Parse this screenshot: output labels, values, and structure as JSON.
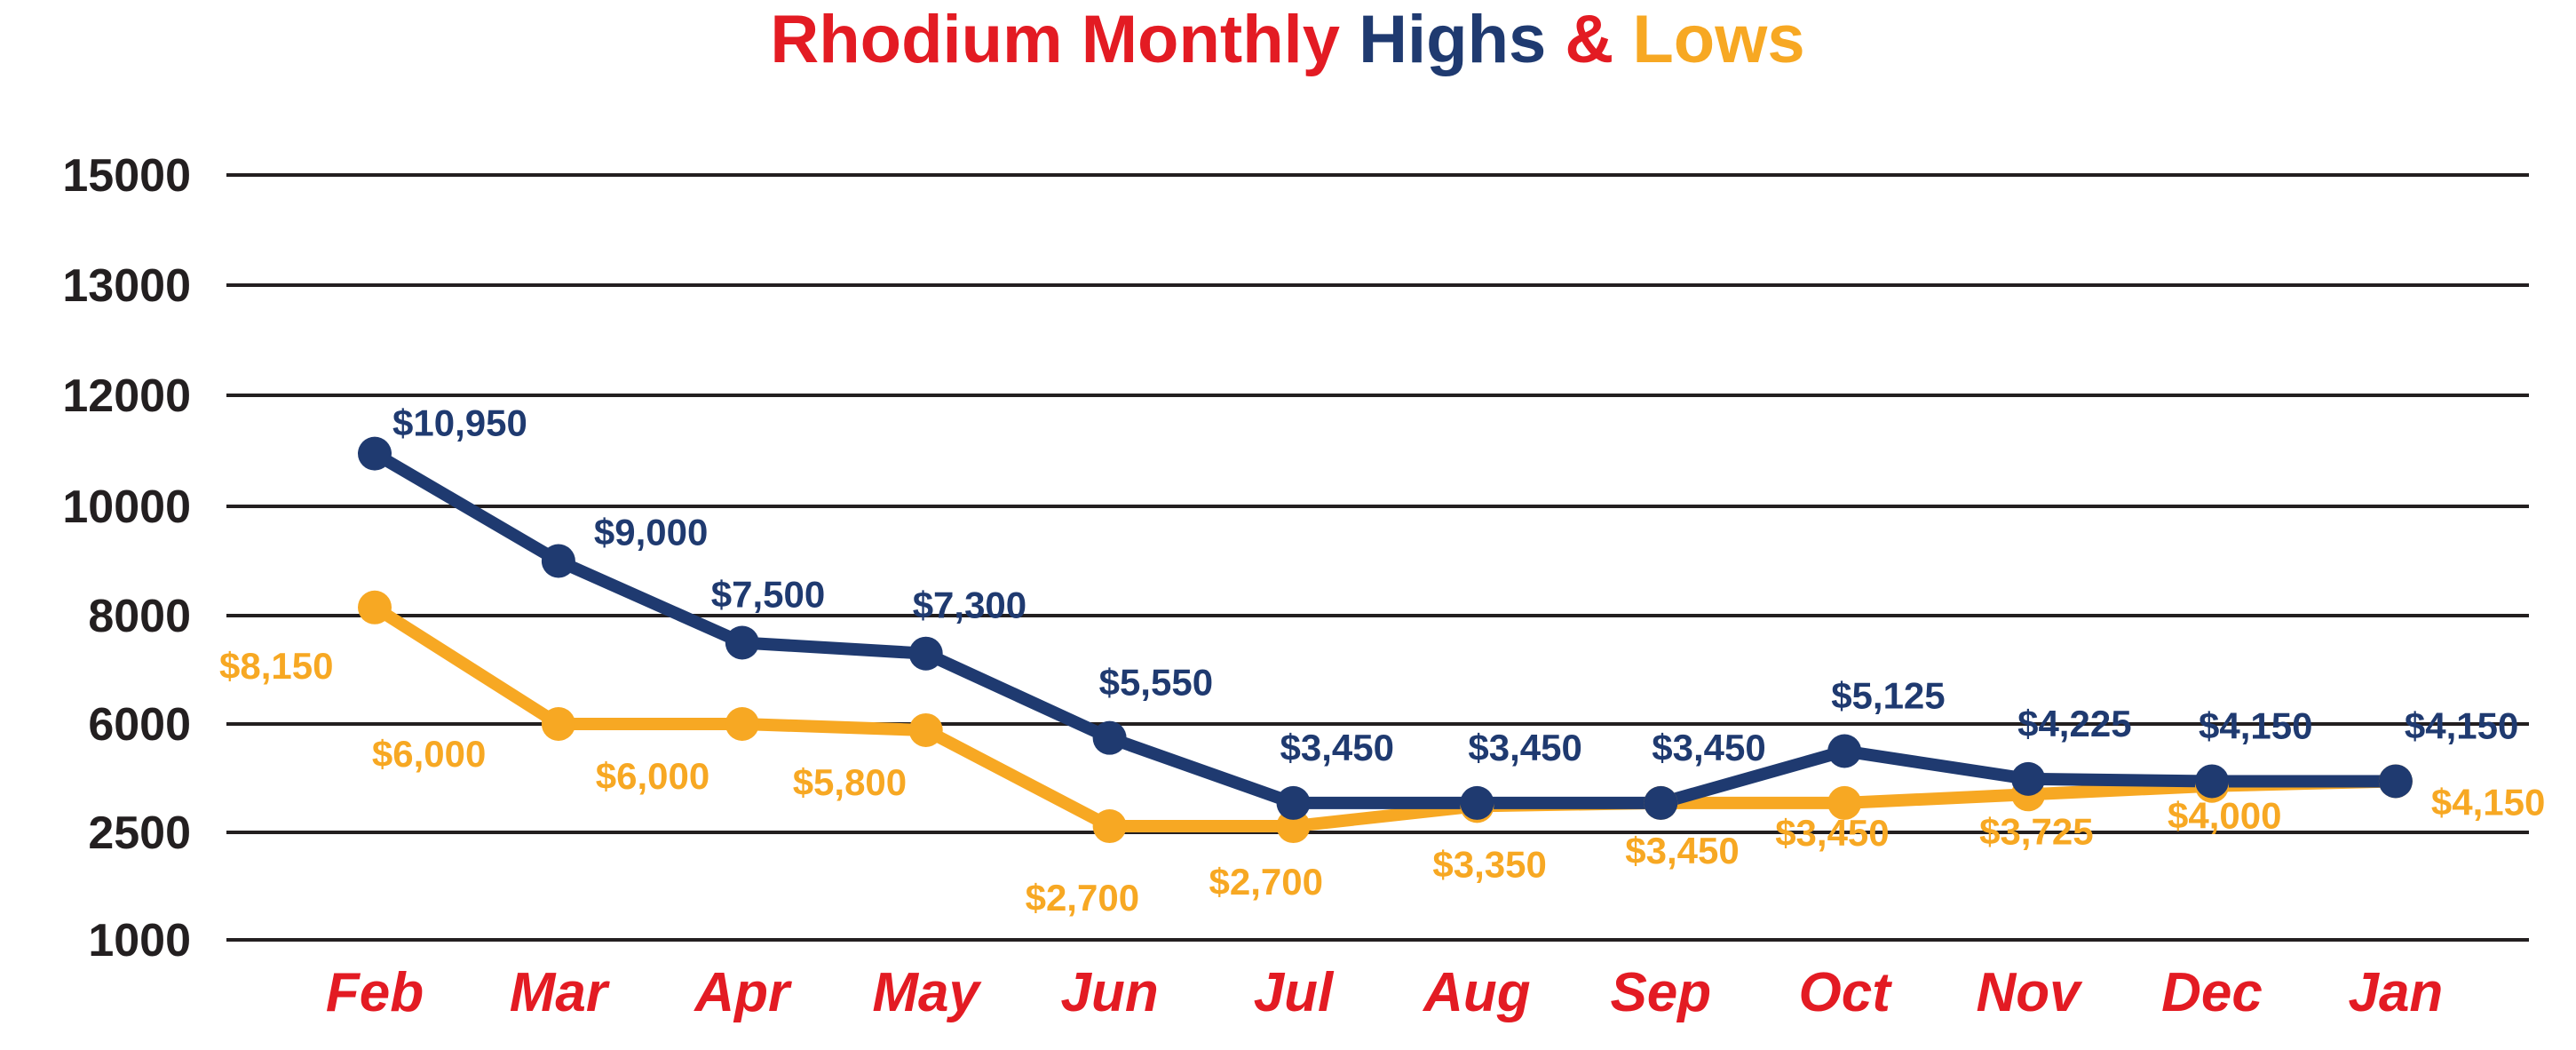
{
  "chart_data": {
    "type": "line",
    "title": {
      "parts": [
        {
          "text": "Rhodium Monthly",
          "color": "#e31b23"
        },
        {
          "text": "Highs",
          "color": "#1f3a70"
        },
        {
          "text": "&",
          "color": "#e31b23"
        },
        {
          "text": "Lows",
          "color": "#f7a823"
        }
      ]
    },
    "y_ticks": [
      "15000",
      "13000",
      "12000",
      "10000",
      "8000",
      "6000",
      "2500",
      "1000"
    ],
    "categories": [
      "Feb",
      "Mar",
      "Apr",
      "May",
      "Jun",
      "Jul",
      "Aug",
      "Sep",
      "Oct",
      "Nov",
      "Dec",
      "Jan"
    ],
    "series": [
      {
        "color": "#1f3a70",
        "values": [
          10950,
          9000,
          7500,
          7300,
          5550,
          3450,
          3450,
          3450,
          5125,
          4225,
          4150,
          4150
        ],
        "labels": [
          "$10,950",
          "$9,000",
          "$7,500",
          "$7,300",
          "$5,550",
          "$3,450",
          "$3,450",
          "$3,450",
          "$5,125",
          "$4,225",
          "$4,150",
          "$4,150"
        ]
      },
      {
        "color": "#f7a823",
        "values": [
          8150,
          6000,
          6000,
          5800,
          2700,
          2700,
          3350,
          3450,
          3450,
          3725,
          4000,
          4150
        ],
        "labels": [
          "$8,150",
          "$6,000",
          "$6,000",
          "$5,800",
          "$2,700",
          "$2,700",
          "$3,350",
          "$3,450",
          "$3,450",
          "$3,725",
          "$4,000",
          "$4,150"
        ]
      }
    ],
    "category_color": "#e31b23",
    "grid": true,
    "legend": "none"
  }
}
